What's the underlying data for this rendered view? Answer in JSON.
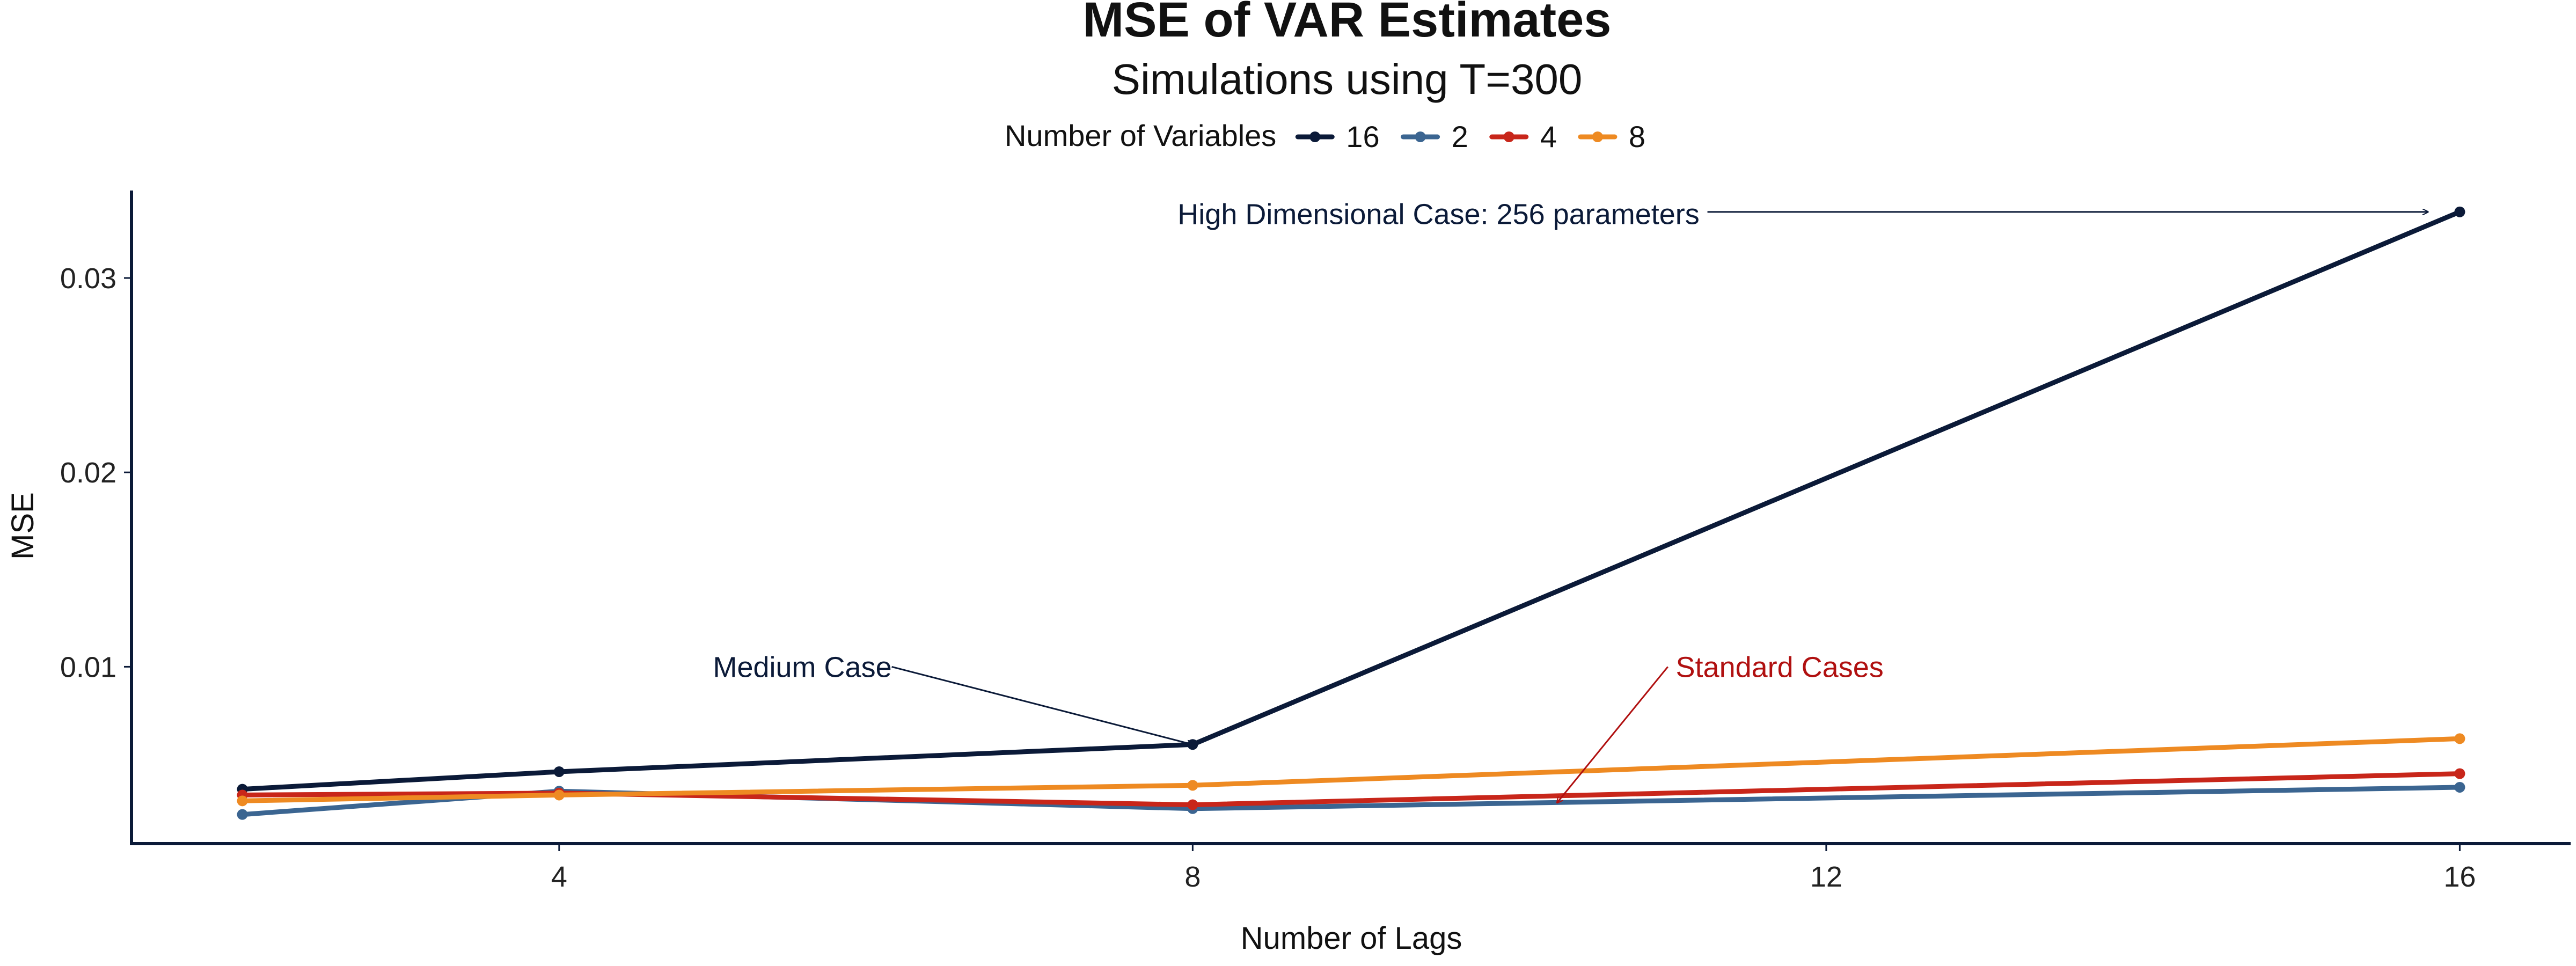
{
  "chart_data": {
    "type": "line",
    "title": "MSE of VAR Estimates",
    "subtitle": "Simulations using T=300",
    "xlabel": "Number of Lags",
    "ylabel": "MSE",
    "x": [
      2,
      4,
      8,
      16
    ],
    "x_ticks": [
      4,
      8,
      12,
      16
    ],
    "x_tick_labels": [
      "4",
      "8",
      "12",
      "16"
    ],
    "xlim": [
      1.3,
      16.7
    ],
    "y_ticks": [
      0.01,
      0.02,
      0.03
    ],
    "y_tick_labels": [
      "0.01",
      "0.02",
      "0.03"
    ],
    "ylim": [
      0.0009,
      0.0345
    ],
    "grid": false,
    "legend": {
      "title": "Number of Variables",
      "position": "top"
    },
    "series": [
      {
        "name": "16",
        "color": "#0b1a38",
        "values": [
          0.0037,
          0.0046,
          0.006,
          0.0334
        ]
      },
      {
        "name": "2",
        "color": "#3b6591",
        "values": [
          0.0024,
          0.0036,
          0.0027,
          0.0038
        ]
      },
      {
        "name": "4",
        "color": "#c8261a",
        "values": [
          0.0034,
          0.0035,
          0.0029,
          0.0045
        ]
      },
      {
        "name": "8",
        "color": "#ee8a22",
        "values": [
          0.0031,
          0.0034,
          0.0039,
          0.0063
        ]
      }
    ],
    "annotations": [
      {
        "text": "High Dimensional Case: 256 parameters",
        "color": "#0b1a38",
        "text_x": 11.2,
        "text_y": 0.0333,
        "anchor": "end",
        "arrow_from": [
          11.25,
          0.0334
        ],
        "arrow_to": [
          15.8,
          0.0334
        ]
      },
      {
        "text": "Medium Case",
        "color": "#0b1a38",
        "text_x": 6.1,
        "text_y": 0.01,
        "anchor": "end",
        "arrow_from": [
          6.1,
          0.01
        ],
        "arrow_to": [
          8.0,
          0.006
        ]
      },
      {
        "text": "Standard Cases",
        "color": "#b01010",
        "text_x": 11.05,
        "text_y": 0.01,
        "anchor": "start",
        "arrow_from": [
          11.0,
          0.01
        ],
        "arrow_to": [
          10.3,
          0.003
        ]
      }
    ]
  }
}
